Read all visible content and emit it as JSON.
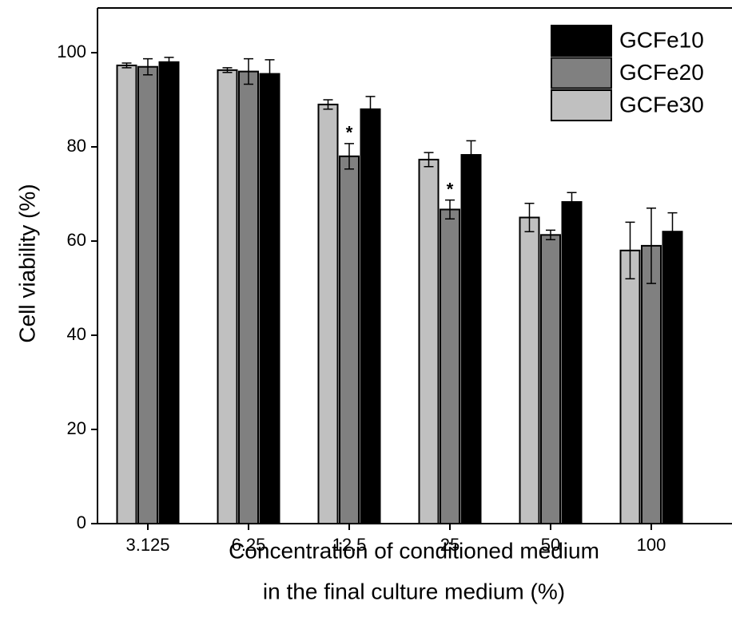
{
  "chart_data": {
    "type": "bar",
    "xlabel": [
      "Concentration of conditioned medium",
      "in the final culture medium (%)"
    ],
    "ylabel": "Cell viability (%)",
    "categories": [
      "3.125",
      "6.25",
      "12.5",
      "25",
      "50",
      "100"
    ],
    "series": [
      {
        "name": "GCFe10",
        "color": "#000000",
        "values": [
          98,
          95.5,
          88,
          78.3,
          68.3,
          62
        ],
        "errors": [
          1,
          3,
          2.7,
          3,
          2,
          4
        ]
      },
      {
        "name": "GCFe20",
        "color": "#808080",
        "values": [
          97,
          96,
          78,
          66.7,
          61.3,
          59
        ],
        "errors": [
          1.7,
          2.7,
          2.7,
          2,
          1,
          8
        ]
      },
      {
        "name": "GCFe30",
        "color": "#c0c0c0",
        "values": [
          97.3,
          96.3,
          89,
          77.3,
          65,
          58
        ],
        "errors": [
          0.5,
          0.5,
          1,
          1.5,
          3,
          6
        ]
      }
    ],
    "annotations": [
      {
        "text": "*",
        "series": "GCFe20",
        "category": "12.5"
      },
      {
        "text": "*",
        "series": "GCFe20",
        "category": "25"
      }
    ],
    "ylim": [
      0,
      110
    ],
    "yticks": [
      0,
      20,
      40,
      60,
      80,
      100
    ],
    "legend": "upper right"
  }
}
